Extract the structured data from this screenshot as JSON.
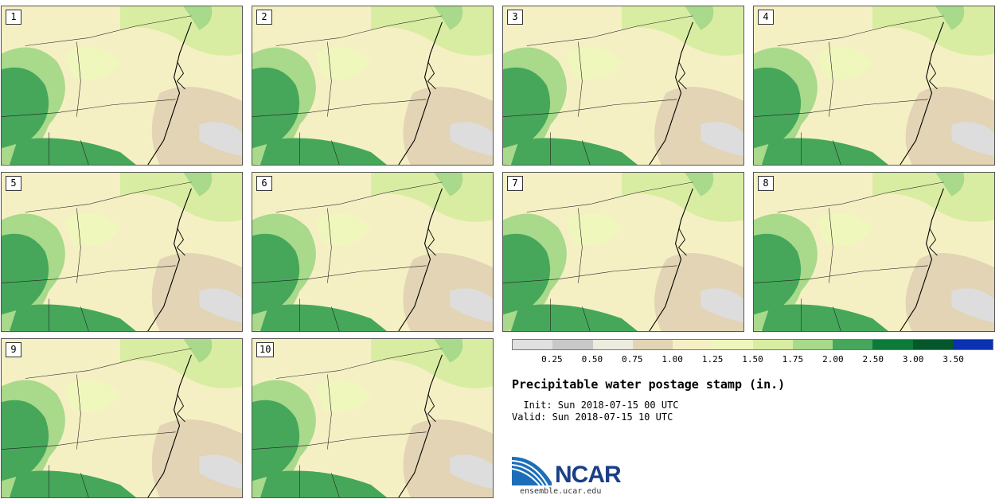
{
  "panels": [
    {
      "label": "1"
    },
    {
      "label": "2"
    },
    {
      "label": "3"
    },
    {
      "label": "4"
    },
    {
      "label": "5"
    },
    {
      "label": "6"
    },
    {
      "label": "7"
    },
    {
      "label": "8"
    },
    {
      "label": "9"
    },
    {
      "label": "10"
    }
  ],
  "colorbar": {
    "ticks": [
      "0.25",
      "0.50",
      "0.75",
      "1.00",
      "1.25",
      "1.50",
      "1.75",
      "2.00",
      "2.50",
      "3.00",
      "3.50"
    ],
    "colors": [
      "#e0e0e0",
      "#c8c8c8",
      "#ececdf",
      "#e2d4b4",
      "#f5f0c4",
      "#f0f7bd",
      "#d9eda2",
      "#a9d98b",
      "#46a75b",
      "#0c7a3a",
      "#06572b",
      "#0a31b0"
    ]
  },
  "title": "Precipitable water postage stamp (in.)",
  "init": "  Init: Sun 2018-07-15 00 UTC",
  "valid": "Valid: Sun 2018-07-15 10 UTC",
  "logo": {
    "name": "NCAR",
    "url": "ensemble.ucar.edu",
    "colors": {
      "blue": "#1b3f87",
      "light_blue": "#3f8fce"
    }
  },
  "map_colors": {
    "ocean_tan": "#e2d4b4",
    "light_yellow": "#f5f0c4",
    "yellow_green": "#f0f7bd",
    "light_green": "#d9eda2",
    "mid_green": "#a9d98b",
    "dark_green": "#46a75b",
    "darkest_green": "#0c7a3a",
    "gray": "#dddddd"
  }
}
